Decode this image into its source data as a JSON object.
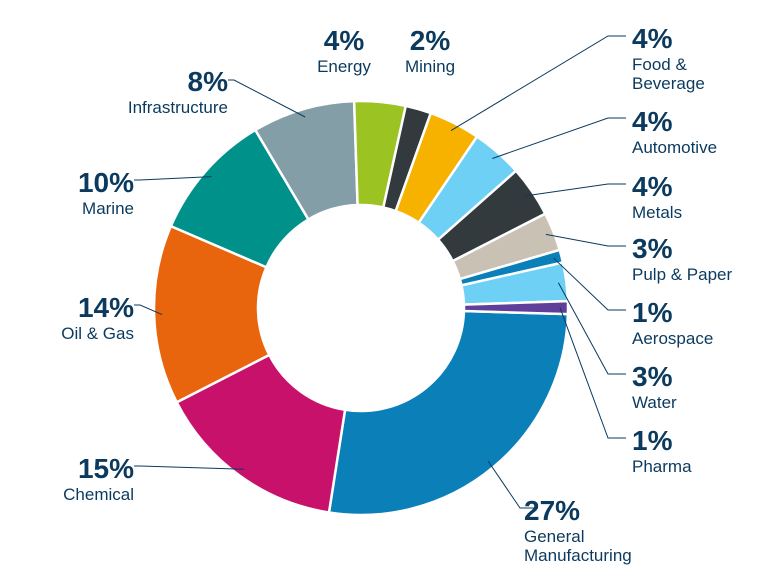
{
  "chart_data": {
    "type": "pie",
    "donut": true,
    "title": "",
    "slices": [
      {
        "label": "General Manufacturing",
        "label_lines": [
          "General",
          "Manufacturing"
        ],
        "value": 27,
        "display": "27%",
        "color": "#0a7fb8"
      },
      {
        "label": "Chemical",
        "label_lines": [
          "Chemical"
        ],
        "value": 15,
        "display": "15%",
        "color": "#c7116b"
      },
      {
        "label": "Oil & Gas",
        "label_lines": [
          "Oil & Gas"
        ],
        "value": 14,
        "display": "14%",
        "color": "#e8650e"
      },
      {
        "label": "Marine",
        "label_lines": [
          "Marine"
        ],
        "value": 10,
        "display": "10%",
        "color": "#00918a"
      },
      {
        "label": "Infrastructure",
        "label_lines": [
          "Infrastructure"
        ],
        "value": 8,
        "display": "8%",
        "color": "#849ea8"
      },
      {
        "label": "Energy",
        "label_lines": [
          "Energy"
        ],
        "value": 4,
        "display": "4%",
        "color": "#9bc322"
      },
      {
        "label": "Mining",
        "label_lines": [
          "Mining"
        ],
        "value": 2,
        "display": "2%",
        "color": "#333a3d"
      },
      {
        "label": "Food & Beverage",
        "label_lines": [
          "Food &",
          "Beverage"
        ],
        "value": 4,
        "display": "4%",
        "color": "#f7b200"
      },
      {
        "label": "Automotive",
        "label_lines": [
          "Automotive"
        ],
        "value": 4,
        "display": "4%",
        "color": "#6fd0f6"
      },
      {
        "label": "Metals",
        "label_lines": [
          "Metals"
        ],
        "value": 4,
        "display": "4%",
        "color": "#333a3d"
      },
      {
        "label": "Pulp & Paper",
        "label_lines": [
          "Pulp & Paper"
        ],
        "value": 3,
        "display": "3%",
        "color": "#c9c1b4"
      },
      {
        "label": "Aerospace",
        "label_lines": [
          "Aerospace"
        ],
        "value": 1,
        "display": "1%",
        "color": "#0a7fb8"
      },
      {
        "label": "Water",
        "label_lines": [
          "Water"
        ],
        "value": 3,
        "display": "3%",
        "color": "#6fd0f6"
      },
      {
        "label": "Pharma",
        "label_lines": [
          "Pharma"
        ],
        "value": 1,
        "display": "1%",
        "color": "#5f3f9a"
      }
    ]
  }
}
